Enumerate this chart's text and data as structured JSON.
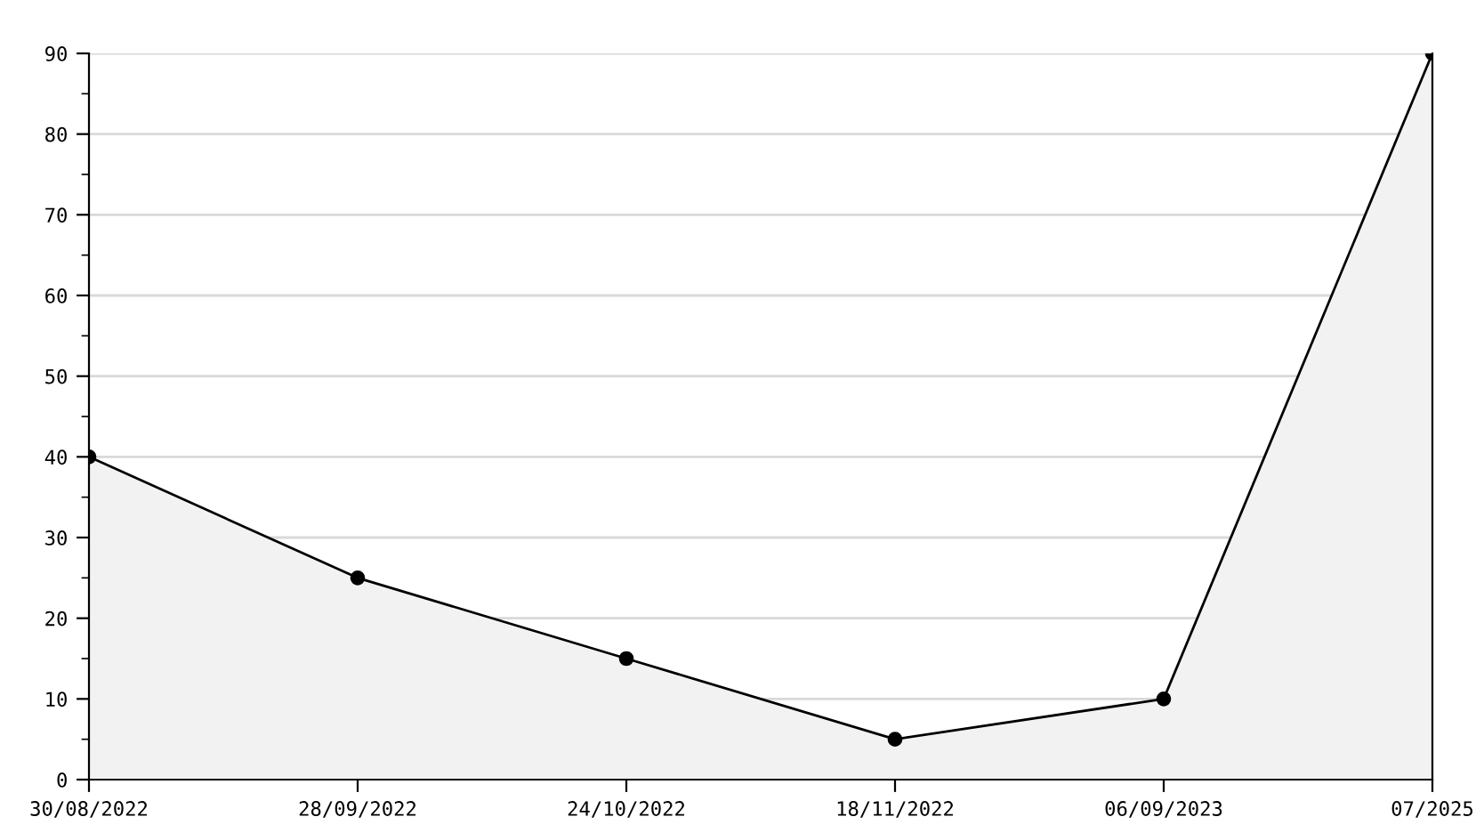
{
  "chart_data": {
    "type": "area",
    "categories": [
      "30/08/2022",
      "28/09/2022",
      "24/10/2022",
      "18/11/2022",
      "06/09/2023",
      "07/2025"
    ],
    "series": [
      {
        "color": "#000000",
        "values": [
          40,
          25,
          15,
          5,
          10,
          90
        ]
      }
    ],
    "ylim": [
      0,
      90
    ],
    "yticks": [
      0,
      {
        "value": 5,
        "label": null
      },
      10,
      {
        "value": 15,
        "label": null
      },
      20,
      {
        "value": 25,
        "label": null
      },
      30,
      {
        "value": 35,
        "label": null
      },
      40,
      {
        "value": 45,
        "label": null
      },
      50,
      {
        "value": 55,
        "label": null
      },
      60,
      {
        "value": 65,
        "label": null
      },
      70,
      {
        "value": 75,
        "label": null
      },
      80,
      {
        "value": 85,
        "label": null
      },
      90
    ],
    "grid": "y",
    "marker": "circle",
    "line_style": "solid",
    "legend": false
  }
}
